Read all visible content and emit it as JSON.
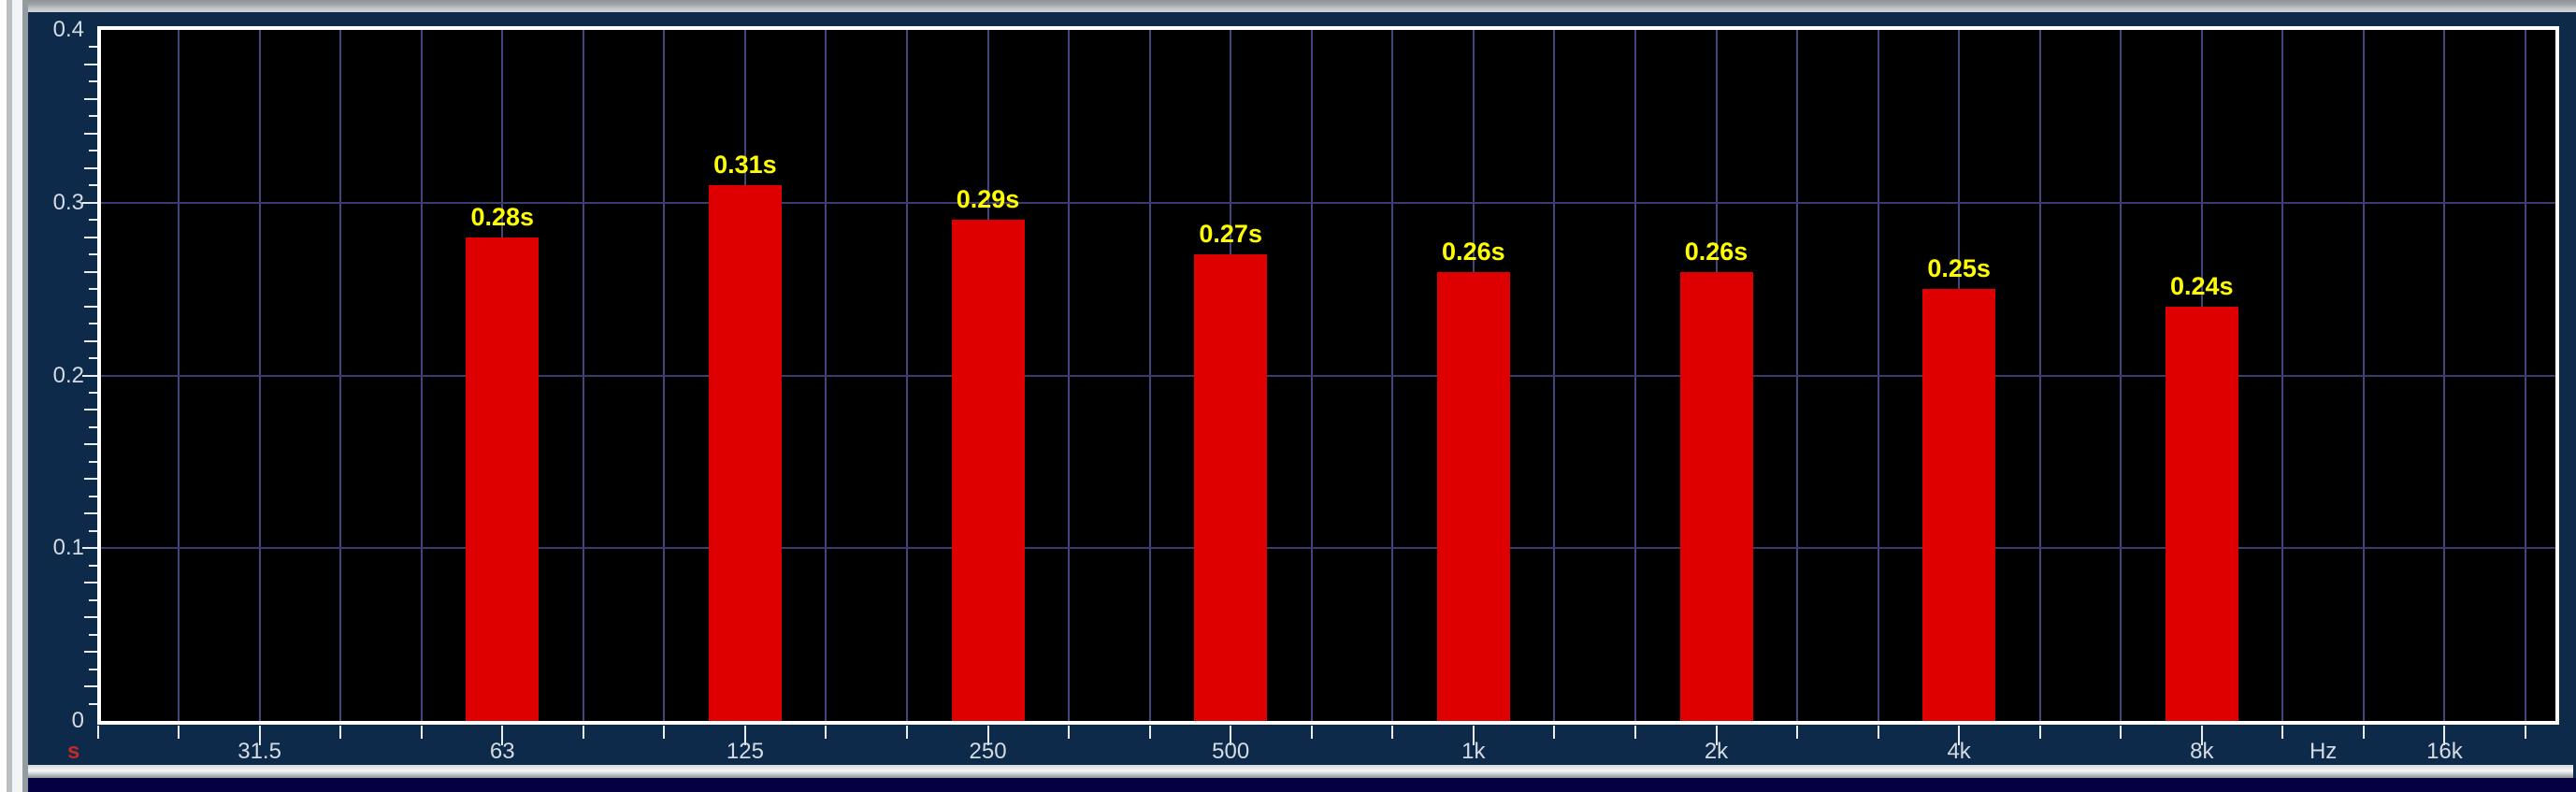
{
  "chart_data": {
    "type": "bar",
    "title": "",
    "categories": [
      "63",
      "125",
      "250",
      "500",
      "1k",
      "2k",
      "4k",
      "8k"
    ],
    "values": [
      0.28,
      0.31,
      0.29,
      0.27,
      0.26,
      0.26,
      0.25,
      0.24
    ],
    "bar_labels": [
      "0.28s",
      "0.31s",
      "0.29s",
      "0.27s",
      "0.26s",
      "0.26s",
      "0.25s",
      "0.24s"
    ],
    "xlabel": "Hz",
    "ylabel": "s",
    "ylim": [
      0,
      0.4
    ],
    "y_tick_labels": [
      "0",
      "0.1",
      "0.2",
      "0.3",
      "0.4"
    ],
    "y_tick_values": [
      0,
      0.1,
      0.2,
      0.3,
      0.4
    ],
    "x_tick_labels": [
      "31.5",
      "63",
      "125",
      "250",
      "500",
      "1k",
      "2k",
      "4k",
      "8k",
      "16k"
    ],
    "x_axis": {
      "scale": "log-frequency",
      "start_hz": 20,
      "end_hz": 20000,
      "gridlines": "third-octave",
      "labeled_octaves_third_octave_index": [
        2,
        5,
        8,
        11,
        14,
        17,
        20,
        23,
        26,
        29
      ],
      "bar_third_octave_index": [
        5,
        8,
        11,
        14,
        17,
        20,
        23,
        26
      ]
    },
    "grid": true,
    "legend": "none",
    "colors": {
      "panel_background": "#0d2a4a",
      "plot_background": "#000000",
      "plot_frame": "#ffffff",
      "vgrid": "#45457d",
      "hgrid": "#3b3b6e",
      "bar": "#de0000",
      "bar_label": "#ffff00",
      "axis_text": "#d4dbe1",
      "tick": "#e9edf0",
      "unit_text": "#c42828",
      "bottom_strip": "#050042"
    }
  }
}
